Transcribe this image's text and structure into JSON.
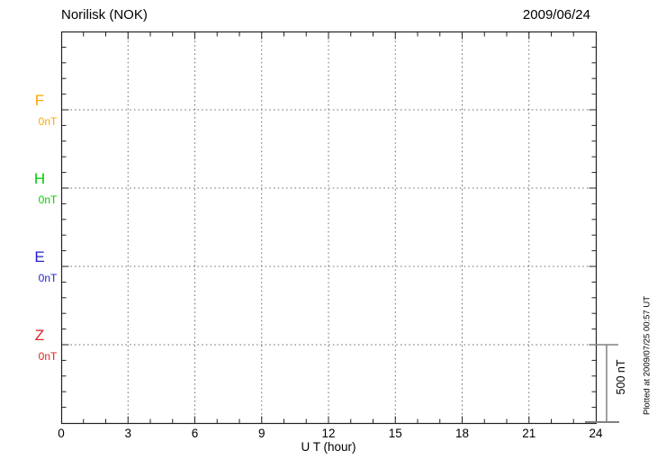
{
  "header": {
    "title": "Norilisk (NOK)",
    "date": "2009/06/24"
  },
  "axes": {
    "x_label": "U T (hour)",
    "x_tick_labels": [
      "0",
      "3",
      "6",
      "9",
      "12",
      "15",
      "18",
      "21",
      "24"
    ]
  },
  "channels": [
    {
      "name": "F",
      "scale_label": "0nT",
      "color": "#FFA500"
    },
    {
      "name": "H",
      "scale_label": "0nT",
      "color": "#00CC00"
    },
    {
      "name": "E",
      "scale_label": "0nT",
      "color": "#2222CC"
    },
    {
      "name": "Z",
      "scale_label": "0nT",
      "color": "#DD2222"
    }
  ],
  "scale_bar": {
    "label": "500 nT"
  },
  "footnote": "Plotted at 2009/07/25 00:57 UT",
  "colors": {
    "frame": "#222222",
    "grid": "#666666",
    "scale_bar": "#808080",
    "text": "#000000"
  },
  "chart_data": {
    "type": "line",
    "title": "Norilisk (NOK)",
    "station": "Norilisk",
    "station_code": "NOK",
    "date": "2009/06/24",
    "xlabel": "U T (hour)",
    "xlim": [
      0,
      24
    ],
    "x_ticks": [
      0,
      3,
      6,
      9,
      12,
      15,
      18,
      21,
      24
    ],
    "x_minor_tick_step_hours": 1,
    "grid": "dotted",
    "y_scale_nT_per_division": 500,
    "y_minor_ticks_per_division": 5,
    "series": [
      {
        "name": "F",
        "baseline_nT": 0,
        "baseline_label": "0nT",
        "color": "#FFA500",
        "values": []
      },
      {
        "name": "H",
        "baseline_nT": 0,
        "baseline_label": "0nT",
        "color": "#00CC00",
        "values": []
      },
      {
        "name": "E",
        "baseline_nT": 0,
        "baseline_label": "0nT",
        "color": "#2222CC",
        "values": []
      },
      {
        "name": "Z",
        "baseline_nT": 0,
        "baseline_label": "0nT",
        "color": "#DD2222",
        "values": []
      }
    ],
    "annotations": [
      "500 nT",
      "Plotted at 2009/07/25 00:57 UT"
    ]
  }
}
